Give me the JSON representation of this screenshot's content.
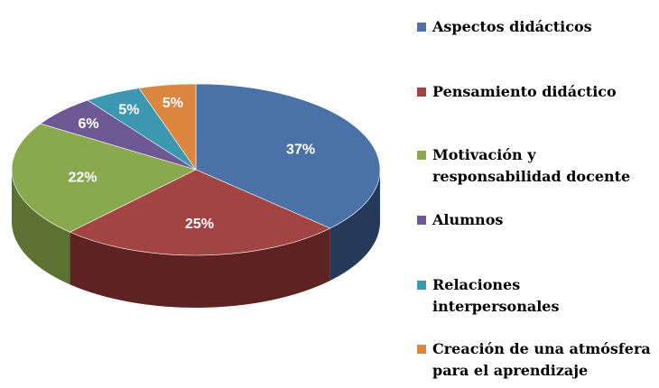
{
  "chart_data": {
    "type": "pie",
    "title": "",
    "slices": [
      {
        "label": "Aspectos didácticos",
        "legend_label": "Aspectos didácticos",
        "value": 37,
        "value_label": "37%",
        "color": "#4a72a8",
        "side_color": "#25395a"
      },
      {
        "label": "Pensamiento didáctico",
        "legend_label": "Pensamiento  didáctico",
        "value": 25,
        "value_label": "25%",
        "color": "#a34444",
        "side_color": "#5e2222"
      },
      {
        "label": "Motivación y responsabilidad docente",
        "legend_label": "Motivación  y\nresponsabilidad  docente",
        "value": 22,
        "value_label": "22%",
        "color": "#8aa84e",
        "side_color": "#5b7233"
      },
      {
        "label": "Alumnos",
        "legend_label": "Alumnos",
        "value": 6,
        "value_label": "6%",
        "color": "#6e5996",
        "side_color": "#493a66"
      },
      {
        "label": "Relaciones interpersonales",
        "legend_label": "Relaciones\ninterpersonales",
        "value": 5,
        "value_label": "5%",
        "color": "#3c98b0",
        "side_color": "#246374"
      },
      {
        "label": "Creación de una atmósfera para el aprendizaje",
        "legend_label": "Creación de una atmósfera\npara el aprendizaje",
        "value": 5,
        "value_label": "5%",
        "color": "#dc8640",
        "side_color": "#99592a"
      }
    ],
    "legend_position": "right",
    "style": "3d-tilted"
  }
}
